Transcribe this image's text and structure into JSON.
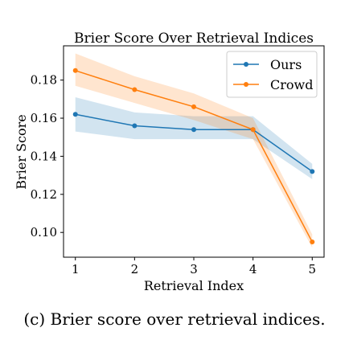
{
  "chart_data": {
    "type": "line",
    "title": "Brier Score Over Retrieval Indices",
    "xlabel": "Retrieval Index",
    "ylabel": "Brier Score",
    "x": [
      1,
      2,
      3,
      4,
      5
    ],
    "x_ticks": [
      "1",
      "2",
      "3",
      "4",
      "5"
    ],
    "y_ticks": [
      "0.10",
      "0.12",
      "0.14",
      "0.16",
      "0.18"
    ],
    "y_tick_values": [
      0.1,
      0.12,
      0.14,
      0.16,
      0.18
    ],
    "xlim": [
      0.8,
      5.2
    ],
    "ylim": [
      0.087,
      0.198
    ],
    "grid": false,
    "legend_position": "top-right",
    "series": [
      {
        "name": "Ours",
        "color": "#1f77b4",
        "values": [
          0.162,
          0.156,
          0.154,
          0.154,
          0.132
        ],
        "lower": [
          0.153,
          0.149,
          0.149,
          0.149,
          0.128
        ],
        "upper": [
          0.171,
          0.163,
          0.161,
          0.161,
          0.136
        ]
      },
      {
        "name": "Crowd",
        "color": "#ff7f0e",
        "values": [
          0.185,
          0.175,
          0.166,
          0.154,
          0.095
        ],
        "lower": [
          0.177,
          0.168,
          0.159,
          0.149,
          0.092
        ],
        "upper": [
          0.194,
          0.182,
          0.173,
          0.16,
          0.099
        ]
      }
    ]
  },
  "caption": "(c) Brier score over retrieval indices."
}
